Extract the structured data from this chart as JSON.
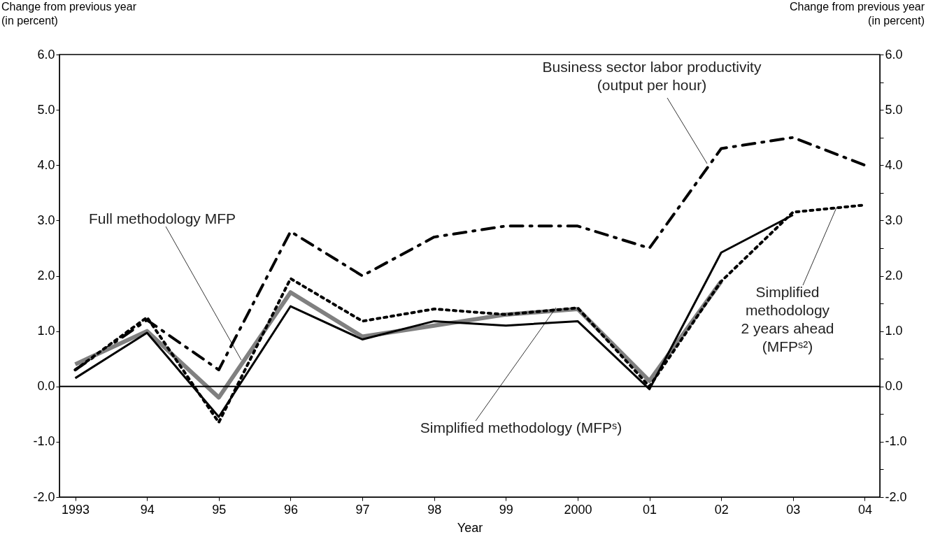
{
  "chart_data": {
    "type": "line",
    "xlabel": "Year",
    "ylabel": "Change from previous year\n(in percent)",
    "y2label": "Change from previous year\n(in percent)",
    "x": [
      1993,
      1994,
      1995,
      1996,
      1997,
      1998,
      1999,
      2000,
      2001,
      2002,
      2003,
      2004
    ],
    "xlim": [
      1992.78,
      2004.21
    ],
    "xticks": [
      {
        "value": 1993,
        "label": "1993"
      },
      {
        "value": 1994,
        "label": "94"
      },
      {
        "value": 1995,
        "label": "95"
      },
      {
        "value": 1996,
        "label": "96"
      },
      {
        "value": 1997,
        "label": "97"
      },
      {
        "value": 1998,
        "label": "98"
      },
      {
        "value": 1999,
        "label": "99"
      },
      {
        "value": 2000,
        "label": "2000"
      },
      {
        "value": 2001,
        "label": "01"
      },
      {
        "value": 2002,
        "label": "02"
      },
      {
        "value": 2003,
        "label": "03"
      },
      {
        "value": 2004,
        "label": "04"
      }
    ],
    "ylim": [
      -2,
      6
    ],
    "yticks": [
      {
        "value": -2,
        "label": "-2.0"
      },
      {
        "value": -1.5,
        "label": null
      },
      {
        "value": -1,
        "label": "-1.0"
      },
      {
        "value": -0.5,
        "label": null
      },
      {
        "value": 0,
        "label": "0.0"
      },
      {
        "value": 0.5,
        "label": null
      },
      {
        "value": 1,
        "label": "1.0"
      },
      {
        "value": 1.5,
        "label": null
      },
      {
        "value": 2,
        "label": "2.0"
      },
      {
        "value": 2.5,
        "label": null
      },
      {
        "value": 3,
        "label": "3.0"
      },
      {
        "value": 3.5,
        "label": null
      },
      {
        "value": 4,
        "label": "4.0"
      },
      {
        "value": 4.5,
        "label": null
      },
      {
        "value": 5,
        "label": "5.0"
      },
      {
        "value": 5.5,
        "label": null
      },
      {
        "value": 6,
        "label": "6.0"
      }
    ],
    "y2lim": [
      -2,
      6
    ],
    "y2ticks": [
      {
        "value": -2,
        "label": "-2.0"
      },
      {
        "value": -1.5,
        "label": null
      },
      {
        "value": -1,
        "label": "-1.0"
      },
      {
        "value": -0.5,
        "label": null
      },
      {
        "value": 0,
        "label": "0.0"
      },
      {
        "value": 0.5,
        "label": null
      },
      {
        "value": 1,
        "label": "1.0"
      },
      {
        "value": 1.5,
        "label": null
      },
      {
        "value": 2,
        "label": "2.0"
      },
      {
        "value": 2.5,
        "label": null
      },
      {
        "value": 3,
        "label": "3.0"
      },
      {
        "value": 3.5,
        "label": null
      },
      {
        "value": 4,
        "label": "4.0"
      },
      {
        "value": 4.5,
        "label": null
      },
      {
        "value": 5,
        "label": "5.0"
      },
      {
        "value": 5.5,
        "label": null
      },
      {
        "value": 6,
        "label": "6.0"
      }
    ],
    "grid": false,
    "ref_lines": [
      {
        "axis": "y",
        "value": 0,
        "color": "#000000",
        "line_style": "solid"
      }
    ],
    "series": [
      {
        "name": "Business sector labor productivity\n(output per hour)",
        "color": "#000000",
        "line_style": "dashed",
        "values": [
          0.3,
          1.2,
          0.3,
          2.8,
          2.0,
          2.7,
          2.9,
          2.9,
          2.5,
          4.3,
          4.5,
          4.0
        ]
      },
      {
        "name": "Full methodology MFP",
        "color": "#808080",
        "line_style": "solid",
        "values": [
          0.4,
          1.0,
          -0.2,
          1.7,
          0.9,
          1.1,
          1.3,
          1.4,
          0.1,
          1.9,
          null,
          null
        ]
      },
      {
        "name": "Simplified methodology (MFPˢ)",
        "color": "#000000",
        "line_style": "solid",
        "values": [
          0.15,
          0.97,
          -0.55,
          1.45,
          0.85,
          1.18,
          1.1,
          1.18,
          -0.05,
          2.42,
          3.1,
          null
        ]
      },
      {
        "name": "Simplified\nmethodology\n2 years ahead\n(MFPˢ²)",
        "color": "#000000",
        "line_style": "dotted",
        "values": [
          0.3,
          1.25,
          -0.65,
          1.95,
          1.18,
          1.4,
          1.3,
          1.42,
          0.0,
          1.9,
          3.15,
          3.28
        ]
      }
    ]
  }
}
